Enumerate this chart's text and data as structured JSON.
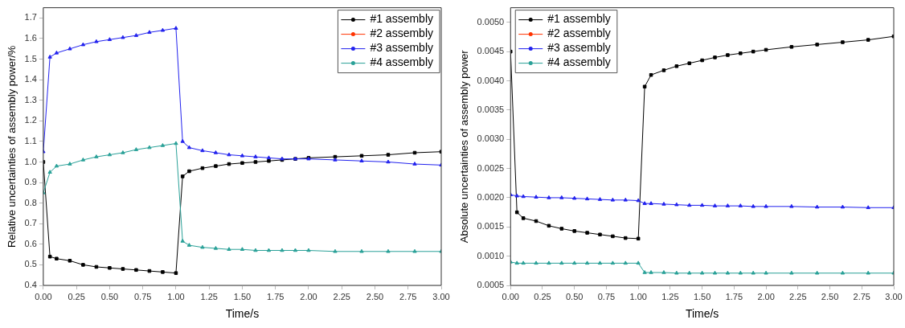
{
  "chart_data": [
    {
      "type": "line",
      "xlabel": "Time/s",
      "ylabel": "Relative uncertainties of assembly power/%",
      "legend": "top right",
      "grid": false,
      "xlim": [
        0,
        3
      ],
      "ylim": [
        0.4,
        1.75
      ],
      "xticks": [
        {
          "value": 0,
          "label": "0.00"
        },
        {
          "value": 0.25,
          "label": "0.25"
        },
        {
          "value": 0.5,
          "label": "0.50"
        },
        {
          "value": 0.75,
          "label": "0.75"
        },
        {
          "value": 1,
          "label": "1.00"
        },
        {
          "value": 1.25,
          "label": "1.25"
        },
        {
          "value": 1.5,
          "label": "1.50"
        },
        {
          "value": 1.75,
          "label": "1.75"
        },
        {
          "value": 2,
          "label": "2.00"
        },
        {
          "value": 2.25,
          "label": "2.25"
        },
        {
          "value": 2.5,
          "label": "2.50"
        },
        {
          "value": 2.75,
          "label": "2.75"
        },
        {
          "value": 3,
          "label": "3.00"
        }
      ],
      "yticks": [
        0.4,
        0.5,
        0.6,
        0.7,
        0.8,
        0.9,
        {
          "value": 1,
          "label": "1.0"
        },
        1.1,
        1.2,
        1.3,
        1.4,
        1.5,
        1.6,
        1.7
      ],
      "x": [
        0,
        0.05,
        0.1,
        0.2,
        0.3,
        0.4,
        0.5,
        0.6,
        0.7,
        0.8,
        0.9,
        1.0,
        1.05,
        1.1,
        1.2,
        1.3,
        1.4,
        1.5,
        1.6,
        1.7,
        1.8,
        1.9,
        2.0,
        2.2,
        2.4,
        2.6,
        2.8,
        3.0
      ],
      "series": [
        {
          "name": "#1 assembly",
          "color": "#000000",
          "marker": "square",
          "values": [
            1.0,
            0.54,
            0.53,
            0.52,
            0.5,
            0.49,
            0.485,
            0.48,
            0.475,
            0.47,
            0.465,
            0.46,
            0.93,
            0.955,
            0.97,
            0.98,
            0.99,
            0.995,
            1.0,
            1.005,
            1.01,
            1.015,
            1.02,
            1.025,
            1.03,
            1.035,
            1.045,
            1.05
          ]
        },
        {
          "name": "#2 assembly",
          "color": "#ff3300",
          "marker": "circle",
          "values": [
            null,
            null,
            null,
            null,
            null,
            null,
            null,
            null,
            null,
            null,
            null,
            null,
            null,
            null,
            null,
            null,
            null,
            null,
            null,
            null,
            null,
            null,
            null,
            null,
            null,
            null,
            null,
            null
          ]
        },
        {
          "name": "#3 assembly",
          "color": "#2222ee",
          "marker": "triangle",
          "values": [
            1.05,
            1.51,
            1.53,
            1.55,
            1.57,
            1.585,
            1.595,
            1.605,
            1.615,
            1.63,
            1.64,
            1.65,
            1.1,
            1.07,
            1.055,
            1.045,
            1.035,
            1.03,
            1.025,
            1.02,
            1.015,
            1.015,
            1.015,
            1.01,
            1.005,
            1.0,
            0.99,
            0.985
          ]
        },
        {
          "name": "#4 assembly",
          "color": "#2aa198",
          "marker": "triangle",
          "values": [
            0.85,
            0.95,
            0.98,
            0.99,
            1.01,
            1.025,
            1.035,
            1.045,
            1.06,
            1.07,
            1.08,
            1.09,
            0.615,
            0.595,
            0.585,
            0.58,
            0.575,
            0.575,
            0.57,
            0.57,
            0.57,
            0.57,
            0.57,
            0.565,
            0.565,
            0.565,
            0.565,
            0.565
          ]
        }
      ]
    },
    {
      "type": "line",
      "xlabel": "Time/s",
      "ylabel": "Absolute uncertainties of assembly power",
      "legend": "top left",
      "grid": false,
      "xlim": [
        0,
        3
      ],
      "ylim": [
        0.0005,
        0.00525
      ],
      "xticks": [
        {
          "value": 0,
          "label": "0.00"
        },
        {
          "value": 0.25,
          "label": "0.25"
        },
        {
          "value": 0.5,
          "label": "0.50"
        },
        {
          "value": 0.75,
          "label": "0.75"
        },
        {
          "value": 1,
          "label": "1.00"
        },
        {
          "value": 1.25,
          "label": "1.25"
        },
        {
          "value": 1.5,
          "label": "1.50"
        },
        {
          "value": 1.75,
          "label": "1.75"
        },
        {
          "value": 2,
          "label": "2.00"
        },
        {
          "value": 2.25,
          "label": "2.25"
        },
        {
          "value": 2.5,
          "label": "2.50"
        },
        {
          "value": 2.75,
          "label": "2.75"
        },
        {
          "value": 3,
          "label": "3.00"
        }
      ],
      "yticks": [
        0.0005,
        {
          "value": 0.001,
          "label": "0.0010"
        },
        0.0015,
        {
          "value": 0.002,
          "label": "0.0020"
        },
        0.0025,
        {
          "value": 0.003,
          "label": "0.0030"
        },
        0.0035,
        {
          "value": 0.004,
          "label": "0.0040"
        },
        0.0045,
        {
          "value": 0.005,
          "label": "0.0050"
        }
      ],
      "x": [
        0,
        0.05,
        0.1,
        0.2,
        0.3,
        0.4,
        0.5,
        0.6,
        0.7,
        0.8,
        0.9,
        1.0,
        1.05,
        1.1,
        1.2,
        1.3,
        1.4,
        1.5,
        1.6,
        1.7,
        1.8,
        1.9,
        2.0,
        2.2,
        2.4,
        2.6,
        2.8,
        3.0
      ],
      "series": [
        {
          "name": "#1 assembly",
          "color": "#000000",
          "marker": "square",
          "values": [
            0.0045,
            0.00175,
            0.00165,
            0.0016,
            0.00152,
            0.00147,
            0.00143,
            0.0014,
            0.00137,
            0.00134,
            0.00131,
            0.0013,
            0.0039,
            0.0041,
            0.00418,
            0.00425,
            0.0043,
            0.00435,
            0.0044,
            0.00444,
            0.00447,
            0.0045,
            0.00453,
            0.00458,
            0.00462,
            0.00466,
            0.0047,
            0.00476
          ]
        },
        {
          "name": "#2 assembly",
          "color": "#ff3300",
          "marker": "circle",
          "values": [
            null,
            null,
            null,
            null,
            null,
            null,
            null,
            null,
            null,
            null,
            null,
            null,
            null,
            null,
            null,
            null,
            null,
            null,
            null,
            null,
            null,
            null,
            null,
            null,
            null,
            null,
            null,
            null
          ]
        },
        {
          "name": "#3 assembly",
          "color": "#2222ee",
          "marker": "triangle",
          "values": [
            0.00205,
            0.00203,
            0.00202,
            0.00201,
            0.002,
            0.002,
            0.00199,
            0.00198,
            0.00197,
            0.00196,
            0.00196,
            0.00195,
            0.0019,
            0.0019,
            0.00189,
            0.00188,
            0.00187,
            0.00187,
            0.00186,
            0.00186,
            0.00186,
            0.00185,
            0.00185,
            0.00185,
            0.00184,
            0.00184,
            0.00183,
            0.00183
          ]
        },
        {
          "name": "#4 assembly",
          "color": "#2aa198",
          "marker": "triangle",
          "values": [
            0.0009,
            0.00088,
            0.00088,
            0.00088,
            0.00088,
            0.00088,
            0.00088,
            0.00088,
            0.00088,
            0.00088,
            0.00088,
            0.00088,
            0.00072,
            0.00072,
            0.00072,
            0.00071,
            0.00071,
            0.00071,
            0.00071,
            0.00071,
            0.00071,
            0.00071,
            0.00071,
            0.00071,
            0.00071,
            0.00071,
            0.00071,
            0.00071
          ]
        }
      ]
    }
  ]
}
